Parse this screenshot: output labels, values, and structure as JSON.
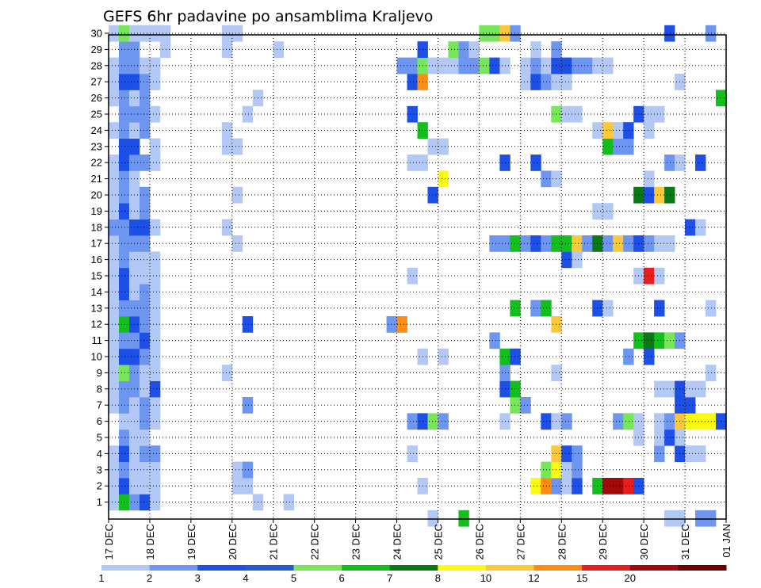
{
  "chart_data": {
    "type": "heatmap",
    "title": "GEFS 6hr padavine po ansamblima Kraljevo",
    "xlabel": "",
    "ylabel": "",
    "x_tick_labels": [
      "17 DEC",
      "18 DEC",
      "19 DEC",
      "20 DEC",
      "21 DEC",
      "22 DEC",
      "23 DEC",
      "24 DEC",
      "25 DEC",
      "26 DEC",
      "27 DEC",
      "28 DEC",
      "29 DEC",
      "30 DEC",
      "31 DEC",
      "01 JAN"
    ],
    "y_tick_labels": [
      "1",
      "2",
      "3",
      "4",
      "5",
      "6",
      "7",
      "8",
      "9",
      "10",
      "11",
      "12",
      "13",
      "14",
      "15",
      "16",
      "17",
      "18",
      "19",
      "20",
      "21",
      "22",
      "23",
      "24",
      "25",
      "26",
      "27",
      "28",
      "29",
      "30"
    ],
    "xlim": [
      0,
      60
    ],
    "ylim": [
      0,
      30
    ],
    "grid": true,
    "colorbar": {
      "position": "bottom",
      "labels": [
        "1",
        "2",
        "3",
        "4",
        "5",
        "6",
        "7",
        "8",
        "10",
        "12",
        "15",
        "20"
      ],
      "colors": [
        "#b4c8f5",
        "#6e96f0",
        "#1e50e6",
        "#285ad2",
        "#78e65a",
        "#14be1e",
        "#0a7814",
        "#fafa14",
        "#ffc83c",
        "#ff8c14",
        "#e61e1e",
        "#a00a0a",
        "#6e0000"
      ]
    },
    "cell_values": {
      "30": [
        [
          1,
          1
        ],
        [
          2,
          5
        ],
        [
          3,
          1
        ],
        [
          4,
          1
        ],
        [
          5,
          1
        ],
        [
          6,
          1
        ],
        [
          12,
          1
        ],
        [
          13,
          1
        ],
        [
          37,
          5
        ],
        [
          38,
          5
        ],
        [
          39,
          10
        ],
        [
          40,
          2
        ],
        [
          55,
          3
        ],
        [
          59,
          2
        ]
      ],
      "29": [
        [
          2,
          2
        ],
        [
          3,
          2
        ],
        [
          6,
          1
        ],
        [
          12,
          1
        ],
        [
          17,
          1
        ],
        [
          31,
          3
        ],
        [
          34,
          5
        ],
        [
          35,
          2
        ],
        [
          36,
          1
        ],
        [
          42,
          1
        ],
        [
          44,
          2
        ]
      ],
      "28": [
        [
          1,
          1
        ],
        [
          2,
          2
        ],
        [
          3,
          2
        ],
        [
          4,
          1
        ],
        [
          5,
          1
        ],
        [
          29,
          2
        ],
        [
          30,
          2
        ],
        [
          31,
          5
        ],
        [
          32,
          1
        ],
        [
          33,
          1
        ],
        [
          34,
          1
        ],
        [
          35,
          2
        ],
        [
          36,
          2
        ],
        [
          37,
          5
        ],
        [
          38,
          3
        ],
        [
          39,
          1
        ],
        [
          41,
          1
        ],
        [
          42,
          2
        ],
        [
          43,
          1
        ],
        [
          44,
          3
        ],
        [
          45,
          3
        ],
        [
          46,
          2
        ],
        [
          47,
          2
        ],
        [
          48,
          1
        ],
        [
          49,
          1
        ]
      ],
      "27": [
        [
          1,
          1
        ],
        [
          2,
          3
        ],
        [
          3,
          3
        ],
        [
          4,
          2
        ],
        [
          5,
          1
        ],
        [
          30,
          3
        ],
        [
          31,
          12
        ],
        [
          41,
          1
        ],
        [
          42,
          3
        ],
        [
          43,
          2
        ],
        [
          44,
          1
        ],
        [
          45,
          1
        ],
        [
          56,
          1
        ]
      ],
      "26": [
        [
          1,
          1
        ],
        [
          2,
          2
        ],
        [
          3,
          1
        ],
        [
          4,
          2
        ],
        [
          15,
          1
        ],
        [
          60,
          6
        ]
      ],
      "25": [
        [
          2,
          2
        ],
        [
          3,
          2
        ],
        [
          4,
          2
        ],
        [
          5,
          1
        ],
        [
          14,
          1
        ],
        [
          30,
          3
        ],
        [
          44,
          5
        ],
        [
          45,
          1
        ],
        [
          46,
          1
        ],
        [
          52,
          3
        ],
        [
          53,
          1
        ],
        [
          54,
          1
        ]
      ],
      "24": [
        [
          1,
          1
        ],
        [
          2,
          2
        ],
        [
          3,
          1
        ],
        [
          4,
          2
        ],
        [
          12,
          1
        ],
        [
          31,
          6
        ],
        [
          48,
          1
        ],
        [
          49,
          10
        ],
        [
          50,
          1
        ],
        [
          51,
          3
        ],
        [
          53,
          1
        ]
      ],
      "23": [
        [
          2,
          3
        ],
        [
          3,
          3
        ],
        [
          5,
          1
        ],
        [
          12,
          1
        ],
        [
          13,
          1
        ],
        [
          32,
          1
        ],
        [
          33,
          1
        ],
        [
          49,
          6
        ],
        [
          50,
          2
        ],
        [
          51,
          2
        ]
      ],
      "22": [
        [
          1,
          1
        ],
        [
          2,
          3
        ],
        [
          3,
          2
        ],
        [
          4,
          2
        ],
        [
          5,
          1
        ],
        [
          30,
          1
        ],
        [
          31,
          1
        ],
        [
          39,
          3
        ],
        [
          42,
          3
        ],
        [
          55,
          2
        ],
        [
          56,
          1
        ],
        [
          58,
          3
        ]
      ],
      "21": [
        [
          1,
          1
        ],
        [
          2,
          2
        ],
        [
          3,
          1
        ],
        [
          33,
          8
        ],
        [
          43,
          2
        ],
        [
          44,
          1
        ],
        [
          53,
          1
        ]
      ],
      "20": [
        [
          1,
          1
        ],
        [
          2,
          2
        ],
        [
          3,
          1
        ],
        [
          4,
          2
        ],
        [
          13,
          1
        ],
        [
          32,
          3
        ],
        [
          52,
          7
        ],
        [
          53,
          3
        ],
        [
          54,
          10
        ],
        [
          55,
          7
        ]
      ],
      "19": [
        [
          1,
          1
        ],
        [
          2,
          3
        ],
        [
          3,
          1
        ],
        [
          4,
          2
        ],
        [
          48,
          1
        ],
        [
          49,
          1
        ]
      ],
      "18": [
        [
          1,
          2
        ],
        [
          2,
          2
        ],
        [
          3,
          3
        ],
        [
          4,
          3
        ],
        [
          5,
          1
        ],
        [
          12,
          1
        ],
        [
          57,
          3
        ],
        [
          58,
          1
        ]
      ],
      "17": [
        [
          1,
          1
        ],
        [
          2,
          2
        ],
        [
          3,
          2
        ],
        [
          4,
          2
        ],
        [
          13,
          1
        ],
        [
          38,
          2
        ],
        [
          39,
          2
        ],
        [
          40,
          6
        ],
        [
          41,
          2
        ],
        [
          42,
          3
        ],
        [
          43,
          2
        ],
        [
          44,
          6
        ],
        [
          45,
          6
        ],
        [
          46,
          10
        ],
        [
          47,
          2
        ],
        [
          48,
          7
        ],
        [
          49,
          2
        ],
        [
          50,
          10
        ],
        [
          51,
          2
        ],
        [
          52,
          3
        ],
        [
          53,
          2
        ],
        [
          54,
          1
        ],
        [
          55,
          1
        ]
      ],
      "16": [
        [
          1,
          1
        ],
        [
          2,
          2
        ],
        [
          3,
          1
        ],
        [
          4,
          1
        ],
        [
          5,
          1
        ],
        [
          45,
          3
        ],
        [
          46,
          1
        ]
      ],
      "15": [
        [
          1,
          1
        ],
        [
          2,
          3
        ],
        [
          3,
          1
        ],
        [
          4,
          1
        ],
        [
          5,
          1
        ],
        [
          30,
          1
        ],
        [
          52,
          1
        ],
        [
          53,
          15
        ],
        [
          54,
          1
        ]
      ],
      "14": [
        [
          1,
          1
        ],
        [
          2,
          3
        ],
        [
          3,
          1
        ],
        [
          4,
          2
        ],
        [
          5,
          1
        ]
      ],
      "13": [
        [
          1,
          1
        ],
        [
          2,
          2
        ],
        [
          3,
          2
        ],
        [
          4,
          2
        ],
        [
          5,
          1
        ],
        [
          40,
          6
        ],
        [
          42,
          2
        ],
        [
          43,
          6
        ],
        [
          48,
          3
        ],
        [
          49,
          1
        ],
        [
          54,
          3
        ],
        [
          59,
          1
        ]
      ],
      "12": [
        [
          1,
          1
        ],
        [
          2,
          6
        ],
        [
          3,
          3
        ],
        [
          4,
          2
        ],
        [
          5,
          1
        ],
        [
          14,
          3
        ],
        [
          28,
          2
        ],
        [
          29,
          12
        ],
        [
          44,
          10
        ]
      ],
      "11": [
        [
          1,
          1
        ],
        [
          2,
          2
        ],
        [
          3,
          2
        ],
        [
          4,
          3
        ],
        [
          5,
          1
        ],
        [
          38,
          2
        ],
        [
          52,
          6
        ],
        [
          53,
          7
        ],
        [
          54,
          6
        ],
        [
          55,
          5
        ],
        [
          56,
          2
        ]
      ],
      "10": [
        [
          1,
          1
        ],
        [
          2,
          3
        ],
        [
          3,
          3
        ],
        [
          4,
          2
        ],
        [
          5,
          1
        ],
        [
          31,
          1
        ],
        [
          33,
          1
        ],
        [
          39,
          6
        ],
        [
          40,
          3
        ],
        [
          51,
          2
        ],
        [
          53,
          3
        ]
      ],
      "9": [
        [
          1,
          1
        ],
        [
          2,
          5
        ],
        [
          3,
          2
        ],
        [
          4,
          1
        ],
        [
          5,
          1
        ],
        [
          12,
          1
        ],
        [
          39,
          2
        ],
        [
          44,
          1
        ],
        [
          59,
          1
        ]
      ],
      "8": [
        [
          1,
          1
        ],
        [
          2,
          2
        ],
        [
          3,
          2
        ],
        [
          4,
          1
        ],
        [
          5,
          3
        ],
        [
          39,
          3
        ],
        [
          40,
          6
        ],
        [
          54,
          1
        ],
        [
          55,
          1
        ],
        [
          56,
          3
        ],
        [
          57,
          1
        ],
        [
          58,
          1
        ]
      ],
      "7": [
        [
          1,
          1
        ],
        [
          2,
          2
        ],
        [
          3,
          1
        ],
        [
          4,
          2
        ],
        [
          5,
          1
        ],
        [
          14,
          2
        ],
        [
          40,
          5
        ],
        [
          41,
          2
        ],
        [
          56,
          3
        ],
        [
          57,
          3
        ]
      ],
      "6": [
        [
          2,
          1
        ],
        [
          3,
          1
        ],
        [
          4,
          2
        ],
        [
          5,
          1
        ],
        [
          30,
          2
        ],
        [
          31,
          3
        ],
        [
          32,
          5
        ],
        [
          33,
          2
        ],
        [
          39,
          1
        ],
        [
          43,
          3
        ],
        [
          44,
          1
        ],
        [
          45,
          2
        ],
        [
          50,
          2
        ],
        [
          51,
          5
        ],
        [
          52,
          1
        ],
        [
          54,
          1
        ],
        [
          55,
          2
        ],
        [
          56,
          10
        ],
        [
          57,
          8
        ],
        [
          58,
          8
        ],
        [
          59,
          8
        ],
        [
          60,
          3
        ]
      ],
      "5": [
        [
          2,
          2
        ],
        [
          3,
          1
        ],
        [
          4,
          1
        ],
        [
          52,
          1
        ],
        [
          54,
          1
        ],
        [
          55,
          3
        ],
        [
          56,
          1
        ]
      ],
      "4": [
        [
          1,
          1
        ],
        [
          2,
          3
        ],
        [
          3,
          1
        ],
        [
          4,
          2
        ],
        [
          5,
          2
        ],
        [
          30,
          1
        ],
        [
          44,
          10
        ],
        [
          45,
          3
        ],
        [
          46,
          2
        ],
        [
          54,
          2
        ],
        [
          56,
          3
        ],
        [
          57,
          1
        ],
        [
          58,
          1
        ]
      ],
      "3": [
        [
          1,
          1
        ],
        [
          2,
          2
        ],
        [
          3,
          1
        ],
        [
          4,
          1
        ],
        [
          5,
          1
        ],
        [
          13,
          1
        ],
        [
          14,
          2
        ],
        [
          43,
          5
        ],
        [
          44,
          8
        ],
        [
          45,
          1
        ],
        [
          46,
          2
        ]
      ],
      "2": [
        [
          1,
          1
        ],
        [
          2,
          3
        ],
        [
          3,
          1
        ],
        [
          4,
          1
        ],
        [
          5,
          1
        ],
        [
          13,
          1
        ],
        [
          14,
          1
        ],
        [
          31,
          1
        ],
        [
          42,
          8
        ],
        [
          43,
          12
        ],
        [
          44,
          2
        ],
        [
          45,
          1
        ],
        [
          46,
          3
        ],
        [
          48,
          6
        ],
        [
          49,
          20
        ],
        [
          50,
          20
        ],
        [
          51,
          15
        ],
        [
          52,
          3
        ]
      ],
      "1": [
        [
          1,
          1
        ],
        [
          2,
          6
        ],
        [
          3,
          2
        ],
        [
          4,
          3
        ],
        [
          5,
          1
        ],
        [
          15,
          1
        ],
        [
          18,
          1
        ]
      ],
      "0": [
        [
          32,
          1
        ],
        [
          35,
          6
        ],
        [
          55,
          1
        ],
        [
          56,
          1
        ],
        [
          58,
          2
        ],
        [
          59,
          2
        ]
      ]
    }
  }
}
